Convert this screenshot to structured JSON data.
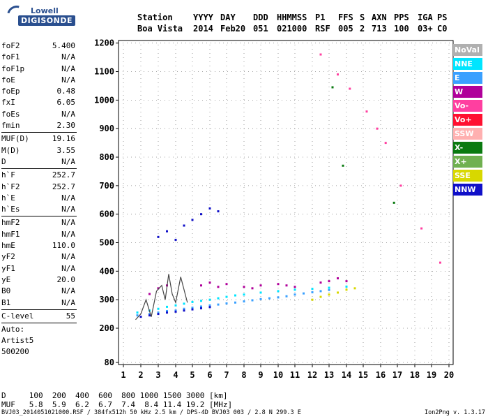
{
  "logo": {
    "line1": "Lowell",
    "line2": "DIGISONDE"
  },
  "header": {
    "row1": [
      "Station",
      "YYYY",
      "DAY",
      "DDD",
      "HHMMSS",
      "P1",
      "FFS",
      "S",
      "AXN",
      "PPS",
      "IGA",
      "PS"
    ],
    "row2": [
      "Boa Vista",
      "2014",
      "Feb20",
      "051",
      "021000",
      "RSF",
      "005",
      "2",
      "713",
      "100",
      "03+",
      "C0"
    ]
  },
  "params": {
    "group1": [
      {
        "k": "foF2",
        "v": "5.400"
      },
      {
        "k": "foF1",
        "v": "N/A"
      },
      {
        "k": "foF1p",
        "v": "N/A"
      },
      {
        "k": "foE",
        "v": "N/A"
      },
      {
        "k": "foEp",
        "v": "0.48"
      },
      {
        "k": "fxI",
        "v": "6.05"
      },
      {
        "k": "foEs",
        "v": "N/A"
      },
      {
        "k": "fmin",
        "v": "2.30"
      }
    ],
    "group2": [
      {
        "k": "MUF(D)",
        "v": "19.16"
      },
      {
        "k": "M(D)",
        "v": "3.55"
      },
      {
        "k": "D",
        "v": "N/A"
      }
    ],
    "group3": [
      {
        "k": "h`F",
        "v": "252.7"
      },
      {
        "k": "h`F2",
        "v": "252.7"
      },
      {
        "k": "h`E",
        "v": "N/A"
      },
      {
        "k": "h`Es",
        "v": "N/A"
      }
    ],
    "group4": [
      {
        "k": "hmF2",
        "v": "N/A"
      },
      {
        "k": "hmF1",
        "v": "N/A"
      },
      {
        "k": "hmE",
        "v": "110.0"
      },
      {
        "k": "yF2",
        "v": "N/A"
      },
      {
        "k": "yF1",
        "v": "N/A"
      },
      {
        "k": "yE",
        "v": "20.0"
      },
      {
        "k": "B0",
        "v": "N/A"
      },
      {
        "k": "B1",
        "v": "N/A"
      }
    ],
    "group5": [
      {
        "k": "C-level",
        "v": "55"
      }
    ],
    "auto": [
      "Auto:",
      "Artist5",
      "500200"
    ]
  },
  "legend": [
    {
      "label": "NoVal",
      "color": "#b0b0b0"
    },
    {
      "label": "NNE",
      "color": "#00e5ff"
    },
    {
      "label": "E",
      "color": "#3aa0ff"
    },
    {
      "label": "W",
      "color": "#b0009a"
    },
    {
      "label": "Vo-",
      "color": "#ff3fa0"
    },
    {
      "label": "Vo+",
      "color": "#ff1030"
    },
    {
      "label": "SSW",
      "color": "#ffb0b0"
    },
    {
      "label": "X-",
      "color": "#0a7a10"
    },
    {
      "label": "X+",
      "color": "#70b050"
    },
    {
      "label": "SSE",
      "color": "#d8d800"
    },
    {
      "label": "NNW",
      "color": "#1010c8"
    }
  ],
  "bottom": {
    "d_row": "D     100  200  400  600  800 1000 1500 3000 [km]",
    "muf_row": "MUF   5.8  5.9  6.2  6.7  7.4  8.4 11.4 19.2 [MHz]"
  },
  "footer": {
    "left": "BVJ03_2014051021000.RSF / 384fx512h 50 kHz 2.5 km / DPS-4D BVJ03 003 / 2.8 N 299.3 E",
    "right": "Ion2Png v. 1.3.17"
  },
  "chart_data": {
    "type": "scatter",
    "title": "",
    "xlabel": "",
    "ylabel": "",
    "xlim": [
      1,
      20
    ],
    "ylim": [
      80,
      1200
    ],
    "xticks": [
      1,
      2,
      3,
      4,
      5,
      6,
      7,
      8,
      9,
      10,
      11,
      12,
      13,
      14,
      15,
      16,
      17,
      18,
      19,
      20
    ],
    "yticks": [
      80,
      200,
      300,
      400,
      500,
      600,
      700,
      800,
      900,
      1000,
      1100,
      1200
    ],
    "grid": true,
    "legend_position": "right",
    "series": [
      {
        "name": "E",
        "points": [
          [
            1.8,
            245
          ],
          [
            2.5,
            250
          ],
          [
            3,
            255
          ],
          [
            3.5,
            260
          ],
          [
            4,
            262
          ],
          [
            4.5,
            268
          ],
          [
            5,
            272
          ],
          [
            5.5,
            276
          ],
          [
            6,
            280
          ],
          [
            6.5,
            283
          ],
          [
            7,
            287
          ],
          [
            7.5,
            290
          ],
          [
            8,
            294
          ],
          [
            8.5,
            298
          ],
          [
            9,
            302
          ],
          [
            9.5,
            305
          ],
          [
            10,
            308
          ],
          [
            10.5,
            312
          ],
          [
            11,
            318
          ],
          [
            11.5,
            322
          ],
          [
            12,
            326
          ],
          [
            12.5,
            330
          ],
          [
            13,
            334
          ]
        ]
      },
      {
        "name": "NNE",
        "points": [
          [
            1.8,
            255
          ],
          [
            2.5,
            262
          ],
          [
            3,
            268
          ],
          [
            3.5,
            275
          ],
          [
            4,
            280
          ],
          [
            4.5,
            286
          ],
          [
            5,
            292
          ],
          [
            5.5,
            296
          ],
          [
            6,
            300
          ],
          [
            6.5,
            305
          ],
          [
            7,
            310
          ],
          [
            7.5,
            315
          ],
          [
            8,
            318
          ],
          [
            9,
            325
          ],
          [
            10,
            330
          ],
          [
            11,
            335
          ],
          [
            12,
            338
          ],
          [
            13,
            342
          ],
          [
            14,
            346
          ]
        ]
      },
      {
        "name": "W",
        "points": [
          [
            2.5,
            320
          ],
          [
            3,
            340
          ],
          [
            3.5,
            350
          ],
          [
            5.5,
            350
          ],
          [
            6,
            360
          ],
          [
            6.5,
            345
          ],
          [
            7,
            355
          ],
          [
            8,
            345
          ],
          [
            8.5,
            340
          ],
          [
            9,
            350
          ],
          [
            10,
            355
          ],
          [
            10.5,
            350
          ],
          [
            11,
            345
          ],
          [
            12.5,
            360
          ],
          [
            13,
            365
          ],
          [
            13.5,
            375
          ],
          [
            14,
            365
          ]
        ]
      },
      {
        "name": "NNW",
        "points": [
          [
            3,
            520
          ],
          [
            3.5,
            540
          ],
          [
            4,
            510
          ],
          [
            4.5,
            560
          ],
          [
            5,
            580
          ],
          [
            5.5,
            600
          ],
          [
            6,
            620
          ],
          [
            6.5,
            610
          ],
          [
            2,
            240
          ],
          [
            2.5,
            245
          ],
          [
            3,
            250
          ],
          [
            3.5,
            255
          ],
          [
            4,
            258
          ],
          [
            4.5,
            262
          ],
          [
            5,
            266
          ],
          [
            5.5,
            270
          ],
          [
            6,
            274
          ]
        ]
      },
      {
        "name": "Vo-",
        "points": [
          [
            12.5,
            1160
          ],
          [
            13.5,
            1090
          ],
          [
            14.2,
            1040
          ],
          [
            15.2,
            960
          ],
          [
            15.8,
            900
          ],
          [
            16.3,
            850
          ],
          [
            17.2,
            700
          ],
          [
            18.4,
            550
          ],
          [
            19.5,
            430
          ]
        ]
      },
      {
        "name": "X-",
        "points": [
          [
            13.2,
            1045
          ],
          [
            13.8,
            770
          ],
          [
            16.8,
            640
          ]
        ]
      },
      {
        "name": "SSE",
        "points": [
          [
            12,
            300
          ],
          [
            12.5,
            310
          ],
          [
            13,
            318
          ],
          [
            13.5,
            325
          ],
          [
            14,
            335
          ],
          [
            14.5,
            340
          ]
        ]
      }
    ],
    "trace": {
      "name": "h`F2 trace",
      "points": [
        [
          1.7,
          230
        ],
        [
          2,
          250
        ],
        [
          2.3,
          300
        ],
        [
          2.6,
          240
        ],
        [
          2.9,
          330
        ],
        [
          3.2,
          350
        ],
        [
          3.4,
          300
        ],
        [
          3.6,
          390
        ],
        [
          3.8,
          320
        ],
        [
          4,
          290
        ],
        [
          4.3,
          380
        ],
        [
          4.7,
          290
        ]
      ]
    }
  }
}
